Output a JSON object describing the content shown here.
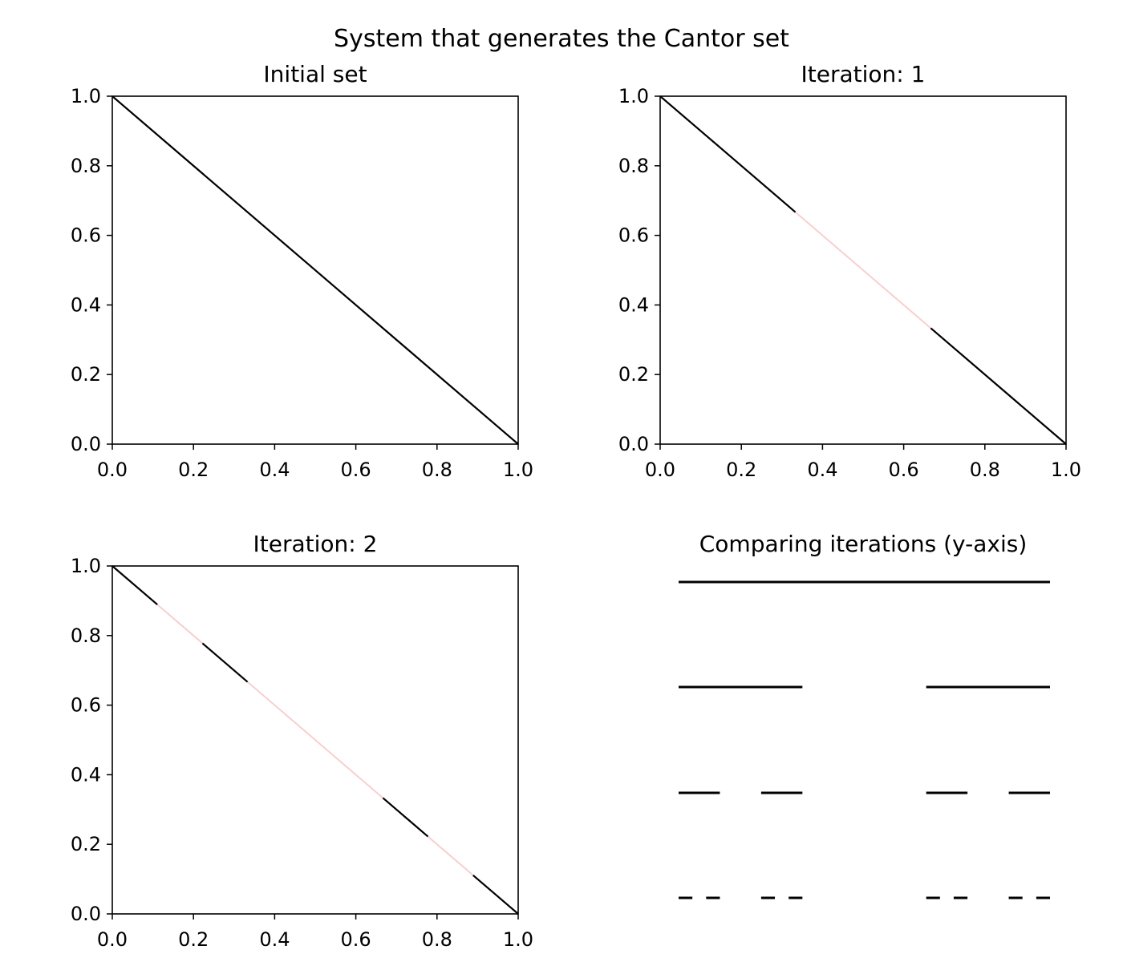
{
  "figure": {
    "title": "System that generates the Cantor set"
  },
  "chart_data": [
    {
      "type": "line",
      "title": "Initial set",
      "xlim": [
        0,
        1
      ],
      "ylim": [
        0,
        1
      ],
      "xticks": [
        "0.0",
        "0.2",
        "0.4",
        "0.6",
        "0.8",
        "1.0"
      ],
      "yticks": [
        "0.0",
        "0.2",
        "0.4",
        "0.6",
        "0.8",
        "1.0"
      ],
      "grid": false,
      "kept_color": "#000000",
      "removed_color": "#f8cfcf",
      "segments": [
        {
          "x": [
            0,
            1
          ],
          "y": [
            1,
            0
          ],
          "kept": true
        }
      ]
    },
    {
      "type": "line",
      "title": "Iteration: 1",
      "xlim": [
        0,
        1
      ],
      "ylim": [
        0,
        1
      ],
      "xticks": [
        "0.0",
        "0.2",
        "0.4",
        "0.6",
        "0.8",
        "1.0"
      ],
      "yticks": [
        "0.0",
        "0.2",
        "0.4",
        "0.6",
        "0.8",
        "1.0"
      ],
      "grid": false,
      "kept_color": "#000000",
      "removed_color": "#f8cfcf",
      "segments": [
        {
          "x": [
            0,
            0.3333
          ],
          "y": [
            1,
            0.6667
          ],
          "kept": true
        },
        {
          "x": [
            0.3333,
            0.6667
          ],
          "y": [
            0.6667,
            0.3333
          ],
          "kept": false
        },
        {
          "x": [
            0.6667,
            1
          ],
          "y": [
            0.3333,
            0
          ],
          "kept": true
        }
      ]
    },
    {
      "type": "line",
      "title": "Iteration: 2",
      "xlim": [
        0,
        1
      ],
      "ylim": [
        0,
        1
      ],
      "xticks": [
        "0.0",
        "0.2",
        "0.4",
        "0.6",
        "0.8",
        "1.0"
      ],
      "yticks": [
        "0.0",
        "0.2",
        "0.4",
        "0.6",
        "0.8",
        "1.0"
      ],
      "grid": false,
      "kept_color": "#000000",
      "removed_color": "#f8cfcf",
      "segments": [
        {
          "x": [
            0,
            0.1111
          ],
          "y": [
            1,
            0.8889
          ],
          "kept": true
        },
        {
          "x": [
            0.1111,
            0.2222
          ],
          "y": [
            0.8889,
            0.7778
          ],
          "kept": false
        },
        {
          "x": [
            0.2222,
            0.3333
          ],
          "y": [
            0.7778,
            0.6667
          ],
          "kept": true
        },
        {
          "x": [
            0.3333,
            0.6667
          ],
          "y": [
            0.6667,
            0.3333
          ],
          "kept": false
        },
        {
          "x": [
            0.6667,
            0.7778
          ],
          "y": [
            0.3333,
            0.2222
          ],
          "kept": true
        },
        {
          "x": [
            0.7778,
            0.8889
          ],
          "y": [
            0.2222,
            0.1111
          ],
          "kept": false
        },
        {
          "x": [
            0.8889,
            1
          ],
          "y": [
            0.1111,
            0
          ],
          "kept": true
        }
      ]
    },
    {
      "type": "line",
      "title": "Comparing iterations (y-axis)",
      "axes_visible": false,
      "xlim": [
        0,
        1
      ],
      "color": "#000000",
      "rows": [
        {
          "iteration": 0,
          "intervals": [
            [
              0,
              1
            ]
          ]
        },
        {
          "iteration": 1,
          "intervals": [
            [
              0,
              0.3333
            ],
            [
              0.6667,
              1
            ]
          ]
        },
        {
          "iteration": 2,
          "intervals": [
            [
              0,
              0.1111
            ],
            [
              0.2222,
              0.3333
            ],
            [
              0.6667,
              0.7778
            ],
            [
              0.8889,
              1
            ]
          ]
        },
        {
          "iteration": 3,
          "intervals": [
            [
              0,
              0.037
            ],
            [
              0.0741,
              0.1111
            ],
            [
              0.2222,
              0.2593
            ],
            [
              0.2963,
              0.3333
            ],
            [
              0.6667,
              0.7037
            ],
            [
              0.7407,
              0.7778
            ],
            [
              0.8889,
              0.9259
            ],
            [
              0.963,
              1
            ]
          ]
        }
      ]
    }
  ]
}
